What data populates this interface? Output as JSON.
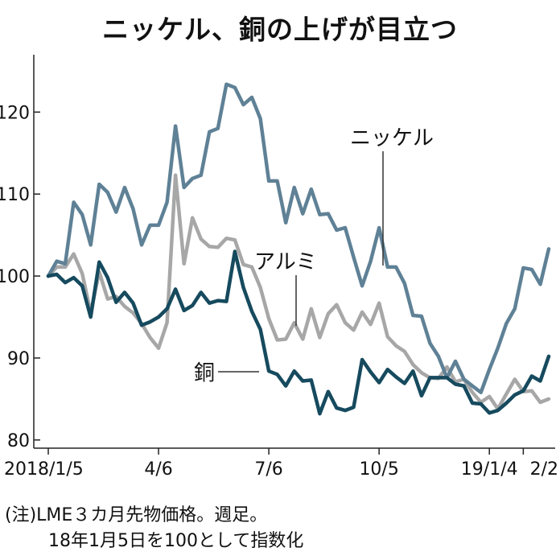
{
  "title": "ニッケル、銅の上げが目立つ",
  "notes": [
    "(注)LME３カ月先物価格。週足。",
    "18年1月5日を100として指数化"
  ],
  "colors": {
    "nickel": "#5f8196",
    "aluminum": "#a7a7a7",
    "copper": "#164a5e",
    "axis": "#222222"
  },
  "chart_data": {
    "type": "line",
    "title": "ニッケル、銅の上げが目立つ",
    "ylim": [
      79,
      127
    ],
    "yticks": [
      80,
      90,
      100,
      110,
      120
    ],
    "x_ticks": [
      {
        "index": 0,
        "label": "2018/1/5"
      },
      {
        "index": 13,
        "label": "4/6"
      },
      {
        "index": 26,
        "label": "7/6"
      },
      {
        "index": 39,
        "label": "10/5"
      },
      {
        "index": 52,
        "label": "19/1/4"
      },
      {
        "index": 56,
        "label": "2/2"
      }
    ],
    "series": [
      {
        "name": "ニッケル",
        "color": "#5f8196",
        "values": [
          100.0,
          101.8,
          101.5,
          109.0,
          107.5,
          103.8,
          111.2,
          110.2,
          107.8,
          110.8,
          108.2,
          103.8,
          106.2,
          106.2,
          109.0,
          118.3,
          110.8,
          111.9,
          112.3,
          117.6,
          118.0,
          123.4,
          123.0,
          120.9,
          121.8,
          119.2,
          111.6,
          111.6,
          106.5,
          110.8,
          107.6,
          110.6,
          107.5,
          107.6,
          105.6,
          105.9,
          102.3,
          98.8,
          101.8,
          105.9,
          101.1,
          101.1,
          99.1,
          95.2,
          95.1,
          91.8,
          90.2,
          87.6,
          89.6,
          87.4,
          86.6,
          85.8,
          88.6,
          91.2,
          94.2,
          96.0,
          101.0,
          100.8,
          99.0,
          103.3
        ]
      },
      {
        "name": "アルミ",
        "color": "#a7a7a7",
        "values": [
          100.0,
          101.1,
          101.1,
          102.7,
          100.3,
          95.5,
          100.5,
          97.2,
          97.5,
          96.3,
          95.5,
          94.2,
          92.5,
          91.2,
          94.3,
          112.3,
          101.5,
          107.1,
          104.5,
          103.6,
          103.5,
          104.6,
          104.4,
          101.4,
          101.1,
          98.6,
          94.8,
          92.2,
          92.3,
          94.3,
          92.3,
          96.0,
          92.5,
          95.4,
          96.5,
          94.3,
          93.4,
          95.6,
          94.1,
          96.7,
          92.6,
          91.5,
          90.8,
          89.2,
          88.2,
          87.6,
          87.5,
          88.9,
          87.1,
          87.4,
          85.8,
          84.6,
          85.3,
          83.8,
          85.6,
          87.4,
          85.9,
          86.0,
          84.6,
          85.0
        ]
      },
      {
        "name": "銅",
        "color": "#164a5e",
        "values": [
          100.0,
          100.2,
          99.2,
          99.8,
          98.8,
          95.0,
          101.7,
          99.8,
          96.8,
          98.0,
          96.7,
          94.0,
          94.4,
          95.0,
          96.0,
          98.4,
          95.8,
          96.4,
          98.0,
          96.7,
          97.0,
          96.9,
          103.0,
          98.6,
          95.7,
          93.5,
          88.4,
          88.0,
          86.6,
          88.4,
          87.2,
          87.3,
          83.2,
          85.9,
          83.9,
          83.6,
          84.0,
          89.8,
          88.3,
          87.0,
          88.6,
          87.7,
          86.9,
          88.4,
          85.4,
          87.6,
          87.6,
          87.6,
          86.8,
          86.6,
          84.5,
          84.4,
          83.3,
          83.6,
          84.5,
          85.5,
          86.0,
          87.8,
          87.2,
          90.2
        ]
      }
    ]
  }
}
